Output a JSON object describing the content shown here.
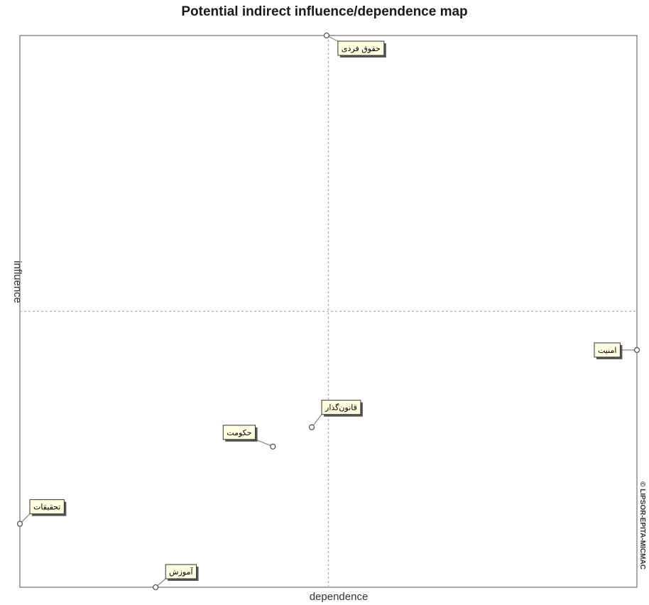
{
  "title": "Potential indirect influence/dependence map",
  "chart_data": {
    "type": "scatter",
    "title": "Potential indirect influence/dependence map",
    "xlabel": "dependence",
    "ylabel": "influence",
    "xlim": [
      0,
      100
    ],
    "ylim": [
      0,
      100
    ],
    "grid": false,
    "crosshair": {
      "x": 50,
      "y": 50
    },
    "points": [
      {
        "label": "حقوق فردی",
        "x": 49.7,
        "y": 100
      },
      {
        "label": "امنیت",
        "x": 100,
        "y": 43
      },
      {
        "label": "قانون‌گذار",
        "x": 47.3,
        "y": 29
      },
      {
        "label": "حکومت",
        "x": 41,
        "y": 25.5
      },
      {
        "label": "تحقیقات",
        "x": 0,
        "y": 11.5
      },
      {
        "label": "آموزش",
        "x": 22,
        "y": 0
      }
    ]
  },
  "credit": "© LIPSOR-EPITA-MICMAC"
}
